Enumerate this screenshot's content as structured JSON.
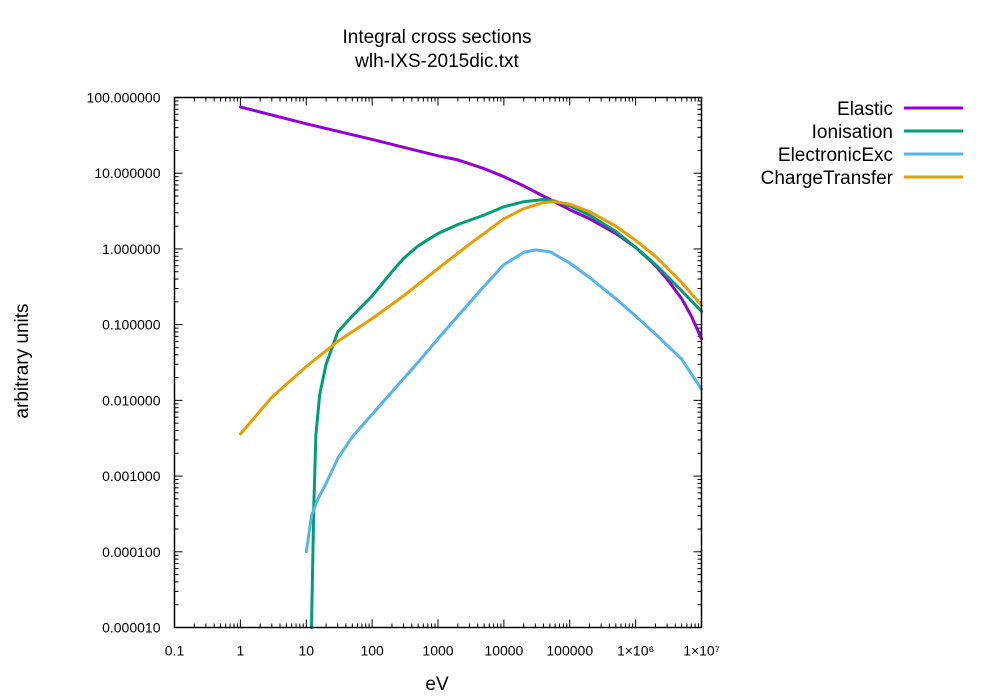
{
  "chart_data": {
    "type": "line",
    "title": "Integral cross sections",
    "subtitle": "wlh-IXS-2015dic.txt",
    "xlabel": "eV",
    "ylabel": "arbitrary units",
    "x_scale": "log",
    "y_scale": "log",
    "xlim": [
      0.1,
      10000000
    ],
    "ylim": [
      1e-05,
      100
    ],
    "grid": false,
    "legend_position": "outside-right-top",
    "x_tick_labels": [
      "0.1",
      "1",
      "10",
      "100",
      "1000",
      "10000",
      "100000",
      "1×10⁶",
      "1×10⁷"
    ],
    "y_tick_labels": [
      "0.000010",
      "0.000100",
      "0.001000",
      "0.010000",
      "0.100000",
      "1.000000",
      "10.000000",
      "100.000000"
    ],
    "series": [
      {
        "name": "Elastic",
        "color": "#9400d3",
        "points": [
          [
            1,
            75
          ],
          [
            10,
            45
          ],
          [
            100,
            28
          ],
          [
            300,
            22
          ],
          [
            1000,
            17
          ],
          [
            2000,
            15
          ],
          [
            5000,
            11.5
          ],
          [
            10000,
            9
          ],
          [
            20000,
            6.8
          ],
          [
            50000,
            4.5
          ],
          [
            100000,
            3.3
          ],
          [
            200000,
            2.5
          ],
          [
            500000,
            1.6
          ],
          [
            1000000,
            1.05
          ],
          [
            2000000,
            0.6
          ],
          [
            3000000,
            0.4
          ],
          [
            5000000,
            0.22
          ],
          [
            7000000,
            0.13
          ],
          [
            10000000,
            0.065
          ]
        ]
      },
      {
        "name": "Ionisation",
        "color": "#009e73",
        "points": [
          [
            12,
            1e-05
          ],
          [
            13,
            0.0004
          ],
          [
            14,
            0.0035
          ],
          [
            16,
            0.012
          ],
          [
            20,
            0.03
          ],
          [
            30,
            0.08
          ],
          [
            50,
            0.13
          ],
          [
            100,
            0.24
          ],
          [
            200,
            0.5
          ],
          [
            300,
            0.75
          ],
          [
            500,
            1.1
          ],
          [
            1000,
            1.6
          ],
          [
            2000,
            2.1
          ],
          [
            5000,
            2.8
          ],
          [
            10000,
            3.6
          ],
          [
            20000,
            4.2
          ],
          [
            40000,
            4.5
          ],
          [
            60000,
            4.3
          ],
          [
            100000,
            3.7
          ],
          [
            200000,
            2.8
          ],
          [
            500000,
            1.7
          ],
          [
            1000000,
            1.05
          ],
          [
            2000000,
            0.62
          ],
          [
            5000000,
            0.28
          ],
          [
            10000000,
            0.15
          ]
        ]
      },
      {
        "name": "ElectronicExc",
        "color": "#56b4e9",
        "points": [
          [
            10,
            0.0001
          ],
          [
            12,
            0.0003
          ],
          [
            15,
            0.0005
          ],
          [
            20,
            0.0008
          ],
          [
            30,
            0.0017
          ],
          [
            50,
            0.0033
          ],
          [
            100,
            0.0065
          ],
          [
            200,
            0.013
          ],
          [
            500,
            0.032
          ],
          [
            1000,
            0.065
          ],
          [
            2000,
            0.13
          ],
          [
            5000,
            0.32
          ],
          [
            10000,
            0.62
          ],
          [
            20000,
            0.9
          ],
          [
            30000,
            0.97
          ],
          [
            50000,
            0.92
          ],
          [
            100000,
            0.65
          ],
          [
            200000,
            0.42
          ],
          [
            500000,
            0.22
          ],
          [
            1000000,
            0.13
          ],
          [
            2000000,
            0.075
          ],
          [
            5000000,
            0.035
          ],
          [
            10000000,
            0.014
          ]
        ]
      },
      {
        "name": "ChargeTransfer",
        "color": "#e69f00",
        "points": [
          [
            1,
            0.0036
          ],
          [
            3,
            0.011
          ],
          [
            10,
            0.028
          ],
          [
            30,
            0.06
          ],
          [
            100,
            0.12
          ],
          [
            300,
            0.24
          ],
          [
            1000,
            0.55
          ],
          [
            3000,
            1.15
          ],
          [
            10000,
            2.5
          ],
          [
            20000,
            3.4
          ],
          [
            40000,
            4.1
          ],
          [
            60000,
            4.2
          ],
          [
            100000,
            3.9
          ],
          [
            200000,
            3.1
          ],
          [
            500000,
            2.0
          ],
          [
            1000000,
            1.3
          ],
          [
            2000000,
            0.8
          ],
          [
            5000000,
            0.36
          ],
          [
            10000000,
            0.18
          ]
        ]
      }
    ]
  }
}
